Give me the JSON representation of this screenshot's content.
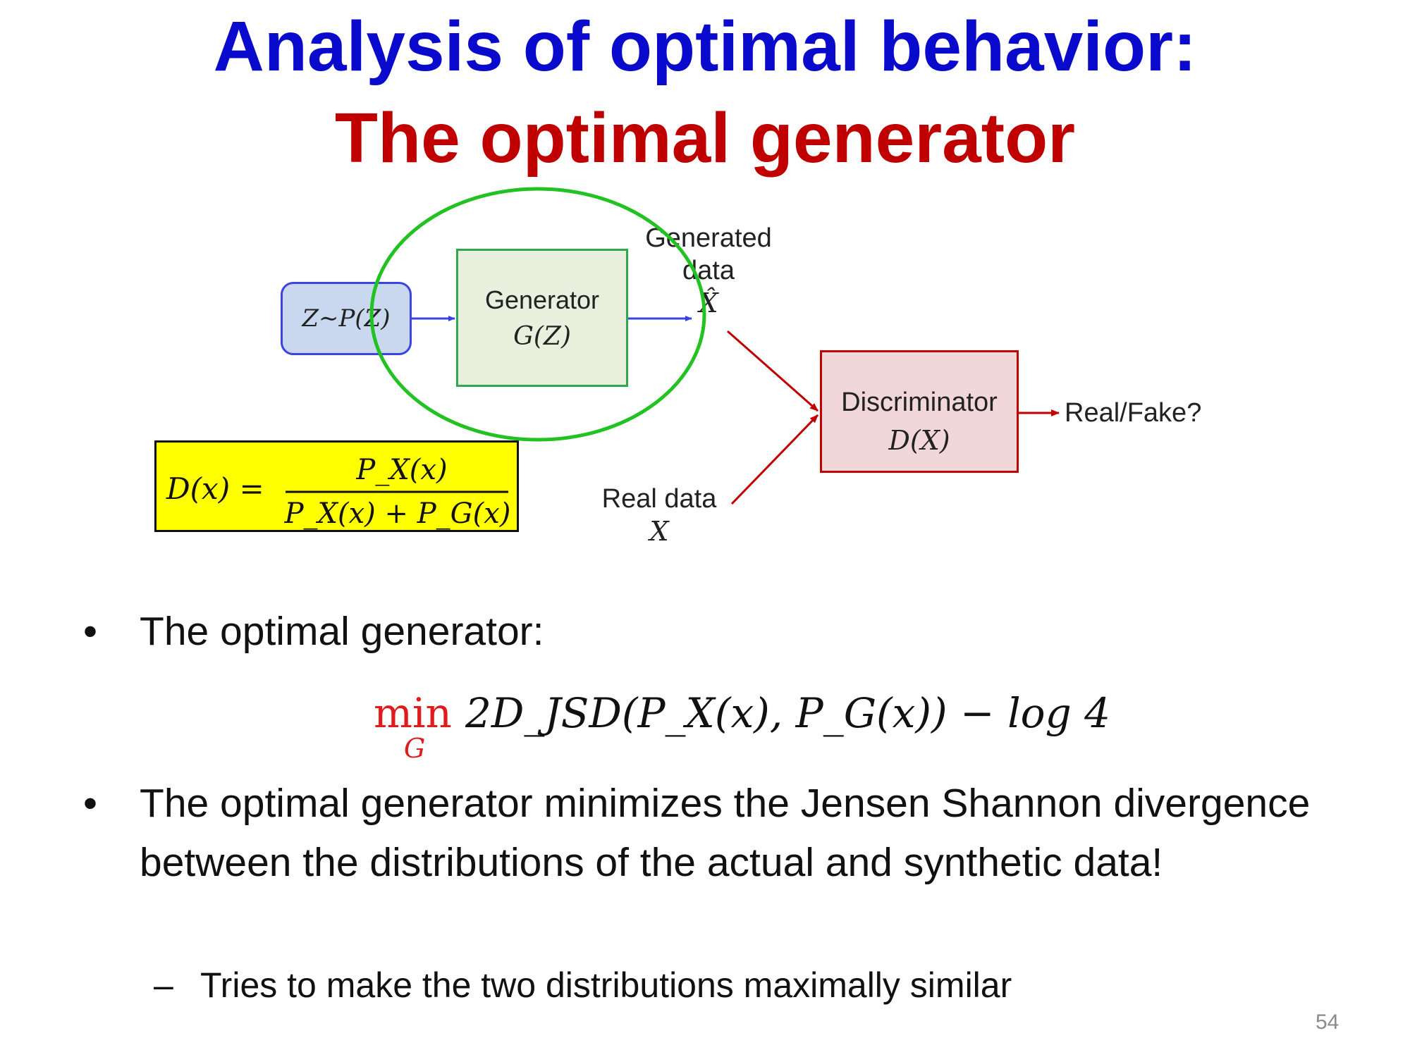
{
  "slide": {
    "title_line1": "Analysis of optimal behavior:",
    "title_line2": "The optimal generator",
    "page_number": "54",
    "colors": {
      "title_blue": "#0A0ACC",
      "title_red": "#C00000",
      "noise_box": "#C9D8EF",
      "generator_box": "#EAF0DE",
      "discriminator_box": "#F1D7D9",
      "formula_box": "#FFFF00",
      "highlight_ellipse": "#22C222"
    }
  },
  "diagram": {
    "noise_label": "Z∼P(Z)",
    "generator_label": "Generator",
    "generator_math": "G(Z)",
    "generated_data_line1": "Generated",
    "generated_data_line2": "data",
    "generated_symbol": "X̂",
    "discriminator_label": "Discriminator",
    "discriminator_math": "D(X)",
    "real_data_label": "Real data",
    "real_symbol": "X",
    "output_label": "Real/Fake?"
  },
  "formula": {
    "lhs": "D(x) =",
    "numerator": "P_X(x)",
    "denominator": "P_X(x) + P_G(x)"
  },
  "bullets": {
    "b1": "The optimal generator:",
    "equation": {
      "min": "min",
      "sub": "G",
      "expr": "2D_JSD(P_X(x), P_G(x)) − log 4"
    },
    "b2": "The optimal generator minimizes the Jensen Shannon divergence between the distributions of the actual and synthetic data!",
    "sub1": "Tries to make the two distributions maximally similar"
  }
}
